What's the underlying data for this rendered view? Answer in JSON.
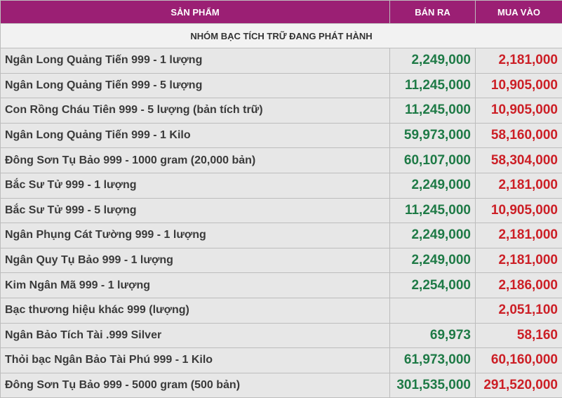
{
  "colors": {
    "header_bg": "#9b1f74",
    "sell": "#1e7a46",
    "buy": "#cc1f26"
  },
  "header": {
    "product": "SẢN PHẨM",
    "sell": "BÁN RA",
    "buy": "MUA VÀO"
  },
  "group": {
    "title": "NHÓM BẠC TÍCH TRỮ ĐANG PHÁT HÀNH"
  },
  "rows": [
    {
      "name": "Ngân Long Quảng Tiến 999 - 1 lượng",
      "sell": "2,249,000",
      "buy": "2,181,000"
    },
    {
      "name": "Ngân Long Quảng Tiến 999 - 5 lượng",
      "sell": "11,245,000",
      "buy": "10,905,000"
    },
    {
      "name": "Con Rồng Cháu Tiên 999 - 5 lượng (bản tích trữ)",
      "sell": "11,245,000",
      "buy": "10,905,000"
    },
    {
      "name": "Ngân Long Quảng Tiến 999 - 1 Kilo",
      "sell": "59,973,000",
      "buy": "58,160,000"
    },
    {
      "name": "Đông Sơn Tụ Bảo 999 - 1000 gram (20,000 bản)",
      "sell": "60,107,000",
      "buy": "58,304,000"
    },
    {
      "name": "Bắc Sư Tử 999 - 1 lượng",
      "sell": "2,249,000",
      "buy": "2,181,000"
    },
    {
      "name": "Bắc Sư Tử 999 - 5 lượng",
      "sell": "11,245,000",
      "buy": "10,905,000"
    },
    {
      "name": "Ngân Phụng Cát Tường 999 - 1 lượng",
      "sell": "2,249,000",
      "buy": "2,181,000"
    },
    {
      "name": "Ngân Quy Tụ Bảo 999 - 1 lượng",
      "sell": "2,249,000",
      "buy": "2,181,000"
    },
    {
      "name": "Kim Ngân Mã 999 - 1 lượng",
      "sell": "2,254,000",
      "buy": "2,186,000"
    },
    {
      "name": "Bạc thương hiệu khác 999 (lượng)",
      "sell": "",
      "buy": "2,051,100"
    },
    {
      "name": "Ngân Bảo Tích Tài .999 Silver",
      "sell": "69,973",
      "buy": "58,160"
    },
    {
      "name": "Thỏi bạc Ngân Bảo Tài Phú 999 - 1 Kilo",
      "sell": "61,973,000",
      "buy": "60,160,000"
    },
    {
      "name": "Đông Sơn Tụ Bảo 999 - 5000 gram (500 bản)",
      "sell": "301,535,000",
      "buy": "291,520,000"
    }
  ]
}
